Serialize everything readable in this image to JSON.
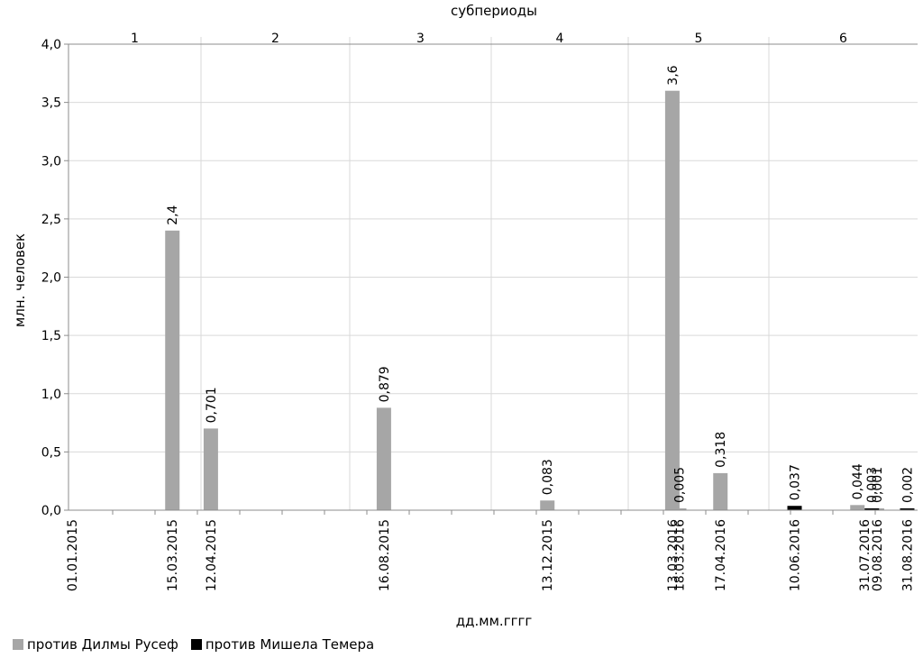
{
  "chart_data": {
    "type": "bar",
    "title": "",
    "top_axis_label": "субпериоды",
    "subperiods": [
      "1",
      "2",
      "3",
      "4",
      "5",
      "6"
    ],
    "xlabel": "дд.мм.гггг",
    "ylabel": "млн. человек",
    "ylim": [
      0,
      4.0
    ],
    "yticks": [
      "0,0",
      "0,5",
      "1,0",
      "1,5",
      "2,0",
      "2,5",
      "3,0",
      "3,5",
      "4,0"
    ],
    "dates": [
      "01.01.2015",
      "15.03.2015",
      "12.04.2015",
      "16.08.2015",
      "13.12.2015",
      "13.03.2016",
      "18.03.2016",
      "17.04.2016",
      "10.06.2016",
      "31.07.2016",
      "09.08.2016",
      "31.08.2016"
    ],
    "grid": true,
    "legend_position": "bottom",
    "series": [
      {
        "name": "против Дилмы Русеф",
        "color": "#a6a6a6",
        "points": [
          {
            "date": "15.03.2015",
            "value": 2.4,
            "label": "2,4"
          },
          {
            "date": "12.04.2015",
            "value": 0.701,
            "label": "0,701"
          },
          {
            "date": "16.08.2015",
            "value": 0.879,
            "label": "0,879"
          },
          {
            "date": "13.12.2015",
            "value": 0.083,
            "label": "0,083"
          },
          {
            "date": "13.03.2016",
            "value": 3.6,
            "label": "3,6"
          },
          {
            "date": "18.03.2016",
            "value": 0.005,
            "label": "0,005"
          },
          {
            "date": "17.04.2016",
            "value": 0.318,
            "label": "0,318"
          },
          {
            "date": "31.07.2016",
            "value": 0.044,
            "label": "0,044"
          },
          {
            "date": "09.08.2016",
            "value": 0.001,
            "label": "0,001"
          }
        ]
      },
      {
        "name": "против Мишела Темера",
        "color": "#000000",
        "points": [
          {
            "date": "10.06.2016",
            "value": 0.037,
            "label": "0,037"
          },
          {
            "date": "31.07.2016",
            "value": 0.003,
            "label": "0,003"
          },
          {
            "date": "31.08.2016",
            "value": 0.002,
            "label": "0,002"
          }
        ]
      }
    ]
  }
}
